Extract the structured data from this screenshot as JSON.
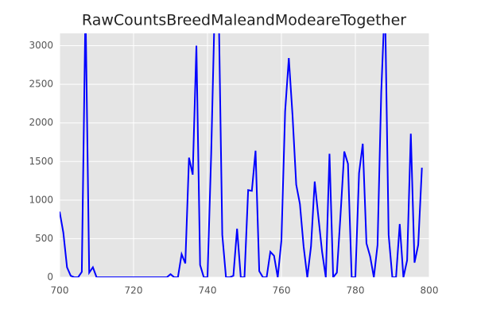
{
  "chart_data": {
    "type": "line",
    "title": "RawCountsBreedMaleandModeareTogether",
    "x": [
      700,
      701,
      702,
      703,
      704,
      705,
      706,
      707,
      708,
      709,
      710,
      711,
      712,
      713,
      714,
      715,
      716,
      717,
      718,
      719,
      720,
      721,
      722,
      723,
      724,
      725,
      726,
      727,
      728,
      729,
      730,
      731,
      732,
      733,
      734,
      735,
      736,
      737,
      738,
      739,
      740,
      741,
      742,
      743,
      744,
      745,
      746,
      747,
      748,
      749,
      750,
      751,
      752,
      753,
      754,
      755,
      756,
      757,
      758,
      759,
      760,
      761,
      762,
      763,
      764,
      765,
      766,
      767,
      768,
      769,
      770,
      771,
      772,
      773,
      774,
      775,
      776,
      777,
      778,
      779,
      780,
      781,
      782,
      783,
      784,
      785,
      786,
      787,
      788,
      789,
      790,
      791,
      792,
      793,
      794,
      795,
      796,
      797,
      798
    ],
    "series": [
      {
        "name": "RawCountsBreedMaleandModeareTogether",
        "color": "#0000ff",
        "values": [
          850,
          580,
          130,
          20,
          0,
          0,
          70,
          3500,
          60,
          130,
          0,
          0,
          0,
          0,
          0,
          0,
          0,
          0,
          0,
          0,
          0,
          0,
          0,
          0,
          0,
          0,
          0,
          0,
          0,
          0,
          40,
          0,
          0,
          300,
          180,
          1550,
          1330,
          3000,
          160,
          0,
          0,
          1600,
          3600,
          3600,
          550,
          0,
          0,
          20,
          630,
          0,
          0,
          1130,
          1120,
          1640,
          80,
          0,
          0,
          330,
          280,
          0,
          480,
          2150,
          2840,
          2100,
          1200,
          950,
          400,
          0,
          400,
          1240,
          780,
          330,
          0,
          1600,
          0,
          60,
          820,
          1630,
          1470,
          0,
          0,
          1350,
          1730,
          440,
          270,
          0,
          420,
          2400,
          3600,
          550,
          0,
          0,
          690,
          0,
          220,
          1860,
          190,
          420,
          1420
        ]
      }
    ],
    "xlim": [
      700,
      800
    ],
    "xticks": [
      700,
      720,
      740,
      760,
      780,
      800
    ],
    "ylim": [
      0,
      3160
    ],
    "yticks": [
      0,
      500,
      1000,
      1500,
      2000,
      2500,
      3000
    ],
    "grid": true
  }
}
